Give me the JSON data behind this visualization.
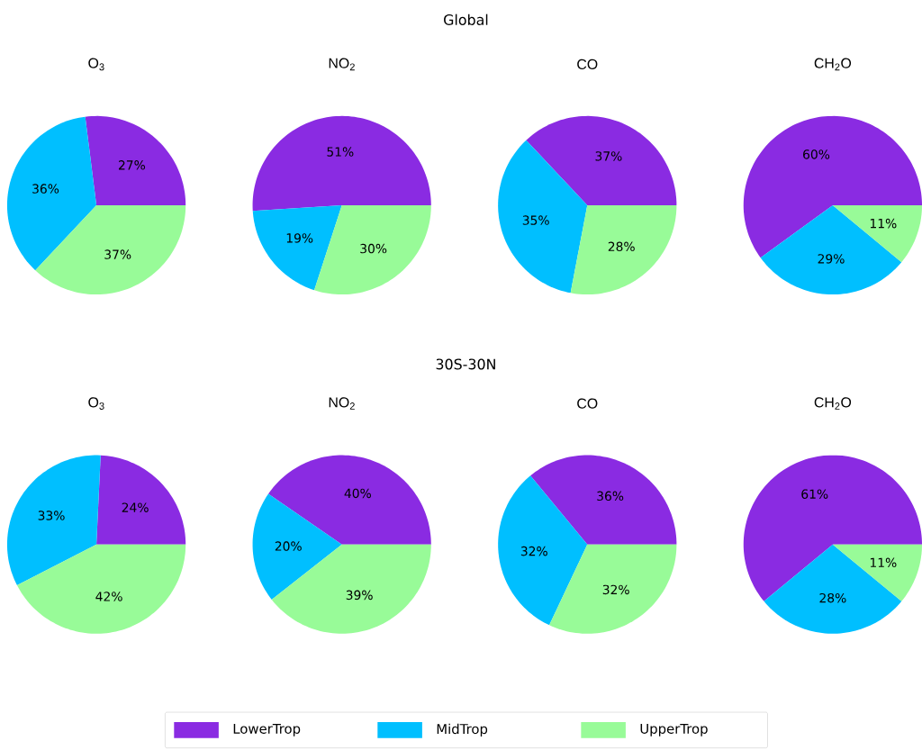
{
  "chart_data": [
    {
      "type": "pie",
      "title": "O$_{3}$",
      "categories": [
        "LowerTrop",
        "MidTrop",
        "UpperTrop"
      ],
      "values": [
        27,
        36,
        37
      ],
      "value_labels": [
        "27%",
        "36%",
        "37%"
      ],
      "colors": [
        "#8a2be2",
        "#00bfff",
        "#98fb98"
      ],
      "legend": "bottom"
    },
    {
      "type": "pie",
      "subtitle": "Global",
      "title": "NO$_{2}$",
      "categories": [
        null,
        null,
        null
      ],
      "values": [
        51,
        19,
        30
      ],
      "value_labels": [
        "51%",
        "19%",
        "30%"
      ],
      "colors": [
        "#8a2be2",
        "#00bfff",
        "#98fb98"
      ]
    },
    {
      "type": "pie",
      "title": "CO",
      "categories": [
        null,
        null,
        null
      ],
      "values": [
        37,
        35,
        28
      ],
      "value_labels": [
        "37%",
        "35%",
        "28%"
      ],
      "colors": [
        "#8a2be2",
        "#00bfff",
        "#98fb98"
      ]
    },
    {
      "type": "pie",
      "title": "CH$_{2}$O",
      "categories": [
        null,
        null,
        null
      ],
      "values": [
        60,
        29,
        11
      ],
      "value_labels": [
        "60%",
        "29%",
        "11%"
      ],
      "colors": [
        "#8a2be2",
        "#00bfff",
        "#98fb98"
      ]
    },
    {
      "type": "pie",
      "title": "O$_{3}$",
      "categories": [
        null,
        null,
        null
      ],
      "values": [
        24,
        33,
        42
      ],
      "value_labels": [
        "24%",
        "33%",
        "42%"
      ],
      "colors": [
        "#8a2be2",
        "#00bfff",
        "#98fb98"
      ]
    },
    {
      "type": "pie",
      "subtitle": "30S-30N",
      "title": "NO$_{2}$",
      "categories": [
        null,
        null,
        null
      ],
      "values": [
        40,
        20,
        39
      ],
      "value_labels": [
        "40%",
        "20%",
        "39%"
      ],
      "colors": [
        "#8a2be2",
        "#00bfff",
        "#98fb98"
      ]
    },
    {
      "type": "pie",
      "title": "CO",
      "categories": [
        null,
        null,
        null
      ],
      "values": [
        36,
        32,
        32
      ],
      "value_labels": [
        "36%",
        "32%",
        "32%"
      ],
      "colors": [
        "#8a2be2",
        "#00bfff",
        "#98fb98"
      ]
    },
    {
      "type": "pie",
      "title": "CH$_{2}$O",
      "categories": [
        null,
        null,
        null
      ],
      "values": [
        61,
        28,
        11
      ],
      "value_labels": [
        "61%",
        "28%",
        "11%"
      ],
      "colors": [
        "#8a2be2",
        "#00bfff",
        "#98fb98"
      ]
    }
  ]
}
